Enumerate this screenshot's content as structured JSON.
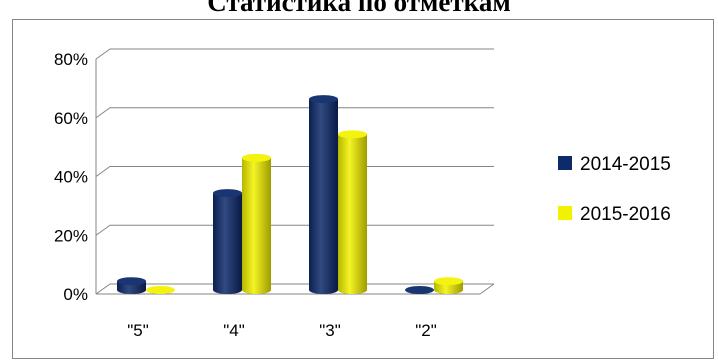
{
  "title": "Статистика по отметкам",
  "chart_data": {
    "type": "bar",
    "title": "Статистика по отметкам",
    "xlabel": "",
    "ylabel": "",
    "categories": [
      "\"5\"",
      "\"4\"",
      "\"3\"",
      "\"2\""
    ],
    "series": [
      {
        "name": "2014-2015",
        "color": "#0d2a6b",
        "values": [
          3,
          33,
          65,
          0
        ]
      },
      {
        "name": "2015-2016",
        "color": "#f2f200",
        "values": [
          0,
          45,
          53,
          3
        ]
      }
    ],
    "ylim": [
      0,
      80
    ],
    "yticks": [
      "0%",
      "20%",
      "40%",
      "60%",
      "80%"
    ],
    "grid": true,
    "legend": "right"
  }
}
